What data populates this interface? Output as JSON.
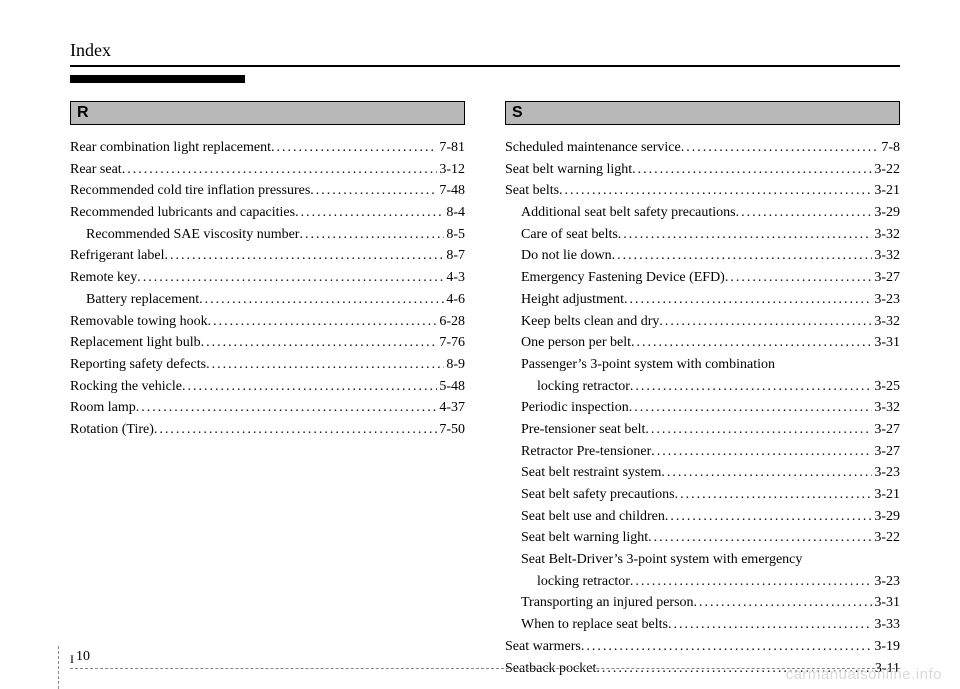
{
  "header": {
    "title": "Index"
  },
  "left": {
    "letter": "R",
    "entries": [
      {
        "label": "Rear combination light replacement",
        "page": "7-81",
        "indent": 0
      },
      {
        "label": "Rear seat",
        "page": "3-12",
        "indent": 0
      },
      {
        "label": "Recommended cold tire inflation pressures",
        "page": "7-48",
        "indent": 0
      },
      {
        "label": "Recommended lubricants and capacities",
        "page": "8-4",
        "indent": 0
      },
      {
        "label": "Recommended SAE viscosity number",
        "page": "8-5",
        "indent": 1
      },
      {
        "label": "Refrigerant label",
        "page": "8-7",
        "indent": 0
      },
      {
        "label": "Remote key",
        "page": "4-3",
        "indent": 0
      },
      {
        "label": "Battery replacement",
        "page": "4-6",
        "indent": 1
      },
      {
        "label": "Removable towing hook",
        "page": "6-28",
        "indent": 0
      },
      {
        "label": "Replacement light bulb",
        "page": "7-76",
        "indent": 0
      },
      {
        "label": "Reporting safety defects",
        "page": "8-9",
        "indent": 0
      },
      {
        "label": "Rocking the vehicle",
        "page": "5-48",
        "indent": 0
      },
      {
        "label": "Room lamp",
        "page": "4-37",
        "indent": 0
      },
      {
        "label": "Rotation (Tire)",
        "page": "7-50",
        "indent": 0
      }
    ]
  },
  "right": {
    "letter": "S",
    "entries": [
      {
        "label": "Scheduled maintenance service",
        "page": "7-8",
        "indent": 0
      },
      {
        "label": "Seat belt warning light",
        "page": "3-22",
        "indent": 0
      },
      {
        "label": "Seat belts",
        "page": "3-21",
        "indent": 0
      },
      {
        "label": "Additional seat belt safety precautions",
        "page": "3-29",
        "indent": 1
      },
      {
        "label": "Care of seat belts",
        "page": "3-32",
        "indent": 1
      },
      {
        "label": "Do not lie down",
        "page": "3-32",
        "indent": 1
      },
      {
        "label": "Emergency Fastening Device (EFD)",
        "page": "3-27",
        "indent": 1
      },
      {
        "label": "Height adjustment",
        "page": "3-23",
        "indent": 1
      },
      {
        "label": "Keep belts clean and dry",
        "page": "3-32",
        "indent": 1
      },
      {
        "label": "One person per belt",
        "page": "3-31",
        "indent": 1
      },
      {
        "label": "Passenger’s 3-point system with combination",
        "page": "",
        "indent": 1,
        "nodots": true
      },
      {
        "label": "locking retractor",
        "page": "3-25",
        "indent": 2
      },
      {
        "label": "Periodic inspection",
        "page": "3-32",
        "indent": 1
      },
      {
        "label": "Pre-tensioner seat belt",
        "page": "3-27",
        "indent": 1
      },
      {
        "label": "Retractor Pre-tensioner",
        "page": "3-27",
        "indent": 1
      },
      {
        "label": "Seat belt restraint system",
        "page": "3-23",
        "indent": 1
      },
      {
        "label": "Seat belt safety precautions",
        "page": "3-21",
        "indent": 1
      },
      {
        "label": "Seat belt use and children",
        "page": "3-29",
        "indent": 1
      },
      {
        "label": "Seat belt warning light",
        "page": "3-22",
        "indent": 1
      },
      {
        "label": "Seat Belt-Driver’s 3-point system with emergency",
        "page": "",
        "indent": 1,
        "nodots": true
      },
      {
        "label": "locking retractor",
        "page": "3-23",
        "indent": 2
      },
      {
        "label": "Transporting an injured person",
        "page": "3-31",
        "indent": 1
      },
      {
        "label": "When to replace seat belts",
        "page": "3-33",
        "indent": 1
      },
      {
        "label": "Seat warmers",
        "page": "3-19",
        "indent": 0
      },
      {
        "label": "Seatback pocket",
        "page": "3-11",
        "indent": 0
      }
    ]
  },
  "footer": {
    "section": "I",
    "page": "10"
  },
  "watermark": "carmanualsonline.info"
}
